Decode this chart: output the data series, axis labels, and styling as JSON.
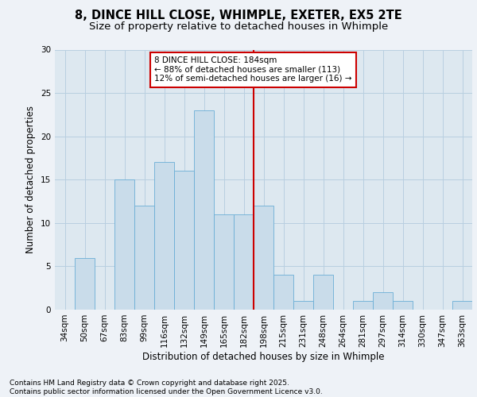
{
  "title_line1": "8, DINCE HILL CLOSE, WHIMPLE, EXETER, EX5 2TE",
  "title_line2": "Size of property relative to detached houses in Whimple",
  "xlabel": "Distribution of detached houses by size in Whimple",
  "ylabel": "Number of detached properties",
  "categories": [
    "34sqm",
    "50sqm",
    "67sqm",
    "83sqm",
    "99sqm",
    "116sqm",
    "132sqm",
    "149sqm",
    "165sqm",
    "182sqm",
    "198sqm",
    "215sqm",
    "231sqm",
    "248sqm",
    "264sqm",
    "281sqm",
    "297sqm",
    "314sqm",
    "330sqm",
    "347sqm",
    "363sqm"
  ],
  "values": [
    0,
    6,
    0,
    15,
    12,
    17,
    16,
    23,
    11,
    11,
    12,
    4,
    1,
    4,
    0,
    1,
    2,
    1,
    0,
    0,
    1
  ],
  "bar_color": "#c9dcea",
  "bar_edge_color": "#6aaed6",
  "vline_color": "#cc0000",
  "annotation_text": "8 DINCE HILL CLOSE: 184sqm\n← 88% of detached houses are smaller (113)\n12% of semi-detached houses are larger (16) →",
  "annotation_box_color": "#ffffff",
  "annotation_box_edge_color": "#cc0000",
  "ylim": [
    0,
    30
  ],
  "yticks": [
    0,
    5,
    10,
    15,
    20,
    25,
    30
  ],
  "grid_color": "#b8cfe0",
  "background_color": "#dde8f0",
  "fig_background_color": "#eef2f7",
  "footer_text": "Contains HM Land Registry data © Crown copyright and database right 2025.\nContains public sector information licensed under the Open Government Licence v3.0.",
  "title_fontsize": 10.5,
  "subtitle_fontsize": 9.5,
  "axis_label_fontsize": 8.5,
  "tick_fontsize": 7.5,
  "annotation_fontsize": 7.5,
  "footer_fontsize": 6.5
}
